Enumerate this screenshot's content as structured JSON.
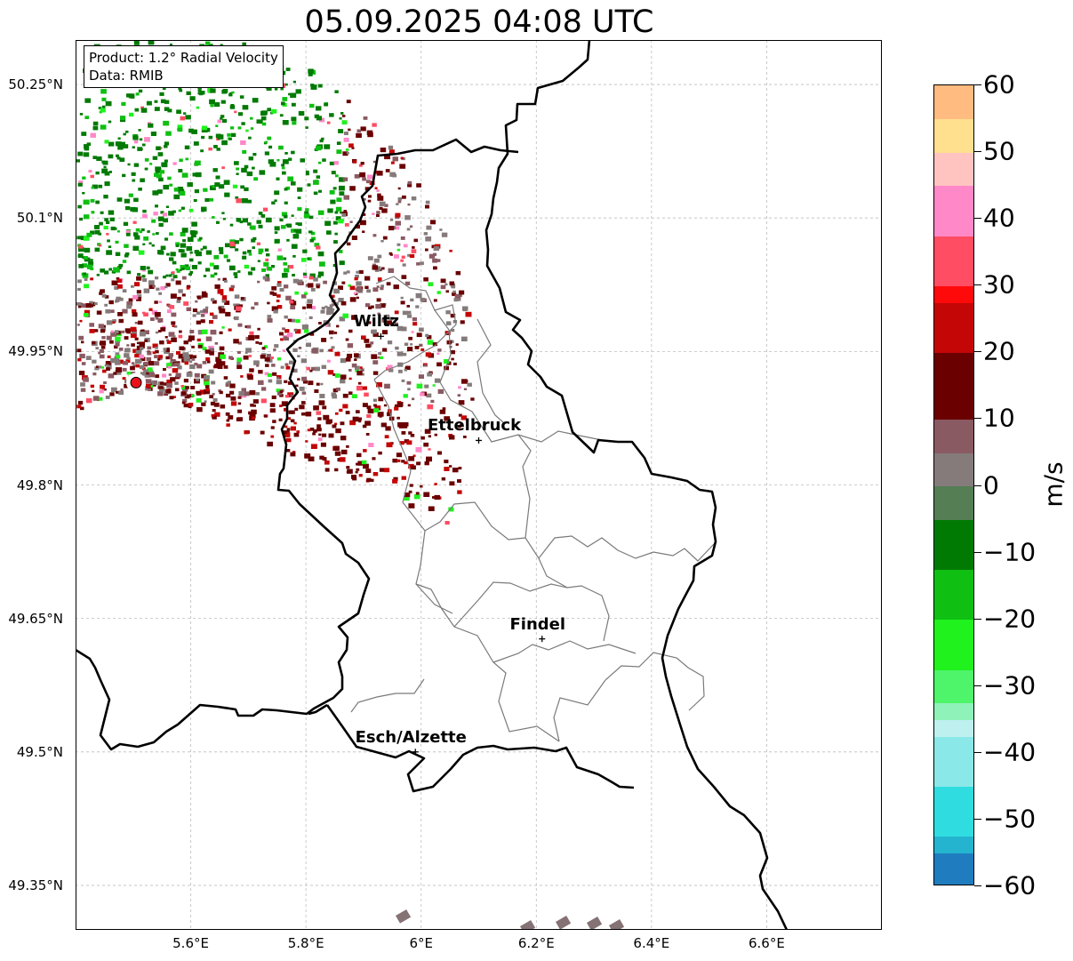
{
  "title": "05.09.2025 04:08 UTC",
  "info": {
    "product": "Product: 1.2° Radial Velocity",
    "source": "Data: RMIB"
  },
  "axes": {
    "lon_range": [
      5.4,
      6.8
    ],
    "lat_range": [
      49.3,
      50.3
    ],
    "x_ticks": [
      "5.6°E",
      "5.8°E",
      "6°E",
      "6.2°E",
      "6.4°E",
      "6.6°E"
    ],
    "x_tick_values": [
      5.6,
      5.8,
      6.0,
      6.2,
      6.4,
      6.6
    ],
    "y_ticks": [
      "50.25°N",
      "50.1°N",
      "49.95°N",
      "49.8°N",
      "49.65°N",
      "49.5°N",
      "49.35°N"
    ],
    "y_tick_values": [
      50.25,
      50.1,
      49.95,
      49.8,
      49.65,
      49.5,
      49.35
    ],
    "grid": true
  },
  "cities": [
    {
      "name": "Wiltz",
      "lon": 5.93,
      "lat": 49.967
    },
    {
      "name": "Ettelbruck",
      "lon": 6.1,
      "lat": 49.85
    },
    {
      "name": "Findel",
      "lon": 6.21,
      "lat": 49.627
    },
    {
      "name": "Esch/Alzette",
      "lon": 5.99,
      "lat": 49.5
    }
  ],
  "radar_site": {
    "lon": 5.505,
    "lat": 49.915,
    "color": "#e8101a"
  },
  "colorbar": {
    "unit": "m/s",
    "min": -60,
    "max": 60,
    "ticks": [
      "60",
      "50",
      "40",
      "30",
      "20",
      "10",
      "0",
      "−10",
      "−20",
      "−30",
      "−40",
      "−50",
      "−60"
    ],
    "tick_values": [
      60,
      50,
      40,
      30,
      20,
      10,
      0,
      -10,
      -20,
      -30,
      -40,
      -50,
      -60
    ],
    "stops": [
      {
        "v": -60,
        "c": "#1f7dbf"
      },
      {
        "v": -56,
        "c": "#24b4cf"
      },
      {
        "v": -52,
        "c": "#2fdde0"
      },
      {
        "v": -44,
        "c": "#8be8e8"
      },
      {
        "v": -38,
        "c": "#bdf0ef"
      },
      {
        "v": -36,
        "c": "#8ff2b8"
      },
      {
        "v": -32,
        "c": "#4ef56a"
      },
      {
        "v": -28,
        "c": "#1ff21c"
      },
      {
        "v": -20,
        "c": "#0fbf12"
      },
      {
        "v": -12,
        "c": "#017a03"
      },
      {
        "v": -6,
        "c": "#006200"
      },
      {
        "v": -5,
        "c": "#557e55"
      },
      {
        "v": 0,
        "c": "#857b7b"
      },
      {
        "v": 5,
        "c": "#8a5a62"
      },
      {
        "v": 9,
        "c": "#7a3a40"
      },
      {
        "v": 10,
        "c": "#6a0000"
      },
      {
        "v": 20,
        "c": "#c40606"
      },
      {
        "v": 28,
        "c": "#ff0a0a"
      },
      {
        "v": 29,
        "c": "#ff4d63"
      },
      {
        "v": 38,
        "c": "#ff88c8"
      },
      {
        "v": 45,
        "c": "#ffc4c0"
      },
      {
        "v": 50,
        "c": "#ffe08f"
      },
      {
        "v": 55,
        "c": "#ffbb80"
      },
      {
        "v": 60,
        "c": "#ff9f57"
      }
    ]
  }
}
